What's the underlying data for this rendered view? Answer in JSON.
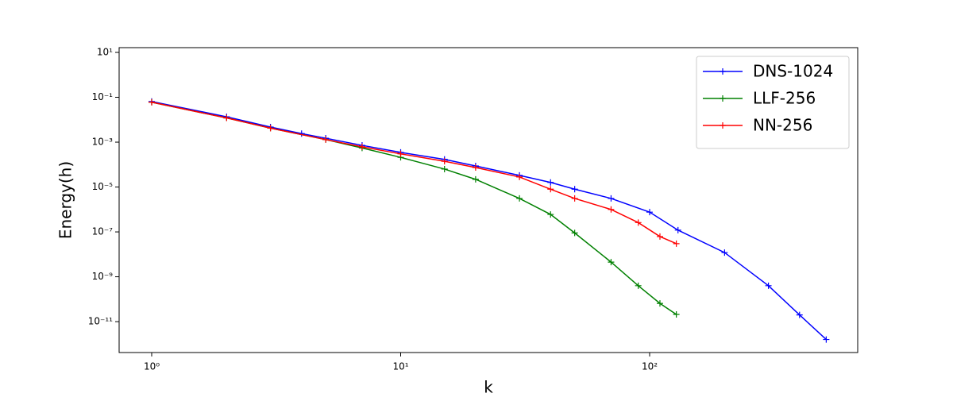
{
  "chart_data": {
    "type": "line",
    "x_label": "k",
    "y_label": "Energy(h)",
    "log_x": true,
    "log_y": true,
    "legend": "upper right",
    "xlim": [
      0.74,
      685
    ],
    "ylim": [
      4.2e-13,
      16.3
    ],
    "xticks": [
      {
        "value": 1,
        "label": "10⁰"
      },
      {
        "value": 10,
        "label": "10¹"
      },
      {
        "value": 100,
        "label": "10²"
      }
    ],
    "yticks": [
      {
        "value": 1e-11,
        "label": "10⁻¹¹"
      },
      {
        "value": 1e-09,
        "label": "10⁻⁹"
      },
      {
        "value": 1e-07,
        "label": "10⁻⁷"
      },
      {
        "value": 1e-05,
        "label": "10⁻⁵"
      },
      {
        "value": 0.001,
        "label": "10⁻³"
      },
      {
        "value": 0.1,
        "label": "10⁻¹"
      },
      {
        "value": 10,
        "label": "10¹"
      }
    ],
    "series": [
      {
        "name": "DNS-1024",
        "color": "#0000ff",
        "x": [
          1,
          2,
          3,
          4,
          5,
          7,
          10,
          15,
          20,
          30,
          40,
          50,
          70,
          100,
          130,
          200,
          300,
          400,
          512
        ],
        "values": [
          0.065,
          0.0135,
          0.0047,
          0.0024,
          0.0015,
          0.00072,
          0.00035,
          0.00017,
          8.7e-05,
          3.3e-05,
          1.6e-05,
          8e-06,
          3.1e-06,
          7.6e-07,
          1.2e-07,
          1.2e-08,
          4e-10,
          2e-11,
          1.6e-12
        ]
      },
      {
        "name": "LLF-256",
        "color": "#008000",
        "x": [
          1,
          2,
          3,
          5,
          7,
          10,
          15,
          20,
          30,
          40,
          50,
          70,
          90,
          110,
          128
        ],
        "values": [
          0.06,
          0.012,
          0.0042,
          0.0013,
          0.00055,
          0.00021,
          6.3e-05,
          2.2e-05,
          3.1e-06,
          6e-07,
          9e-08,
          4.5e-09,
          4e-10,
          6.5e-11,
          2.1e-11
        ]
      },
      {
        "name": "NN-256",
        "color": "#ff0000",
        "x": [
          1,
          2,
          3,
          5,
          7,
          10,
          15,
          20,
          30,
          40,
          50,
          70,
          90,
          110,
          128
        ],
        "values": [
          0.06,
          0.012,
          0.0042,
          0.0013,
          0.00062,
          0.0003,
          0.00014,
          7.4e-05,
          2.8e-05,
          8e-06,
          3.1e-06,
          1e-06,
          2.6e-07,
          6.2e-08,
          3e-08
        ]
      }
    ]
  }
}
